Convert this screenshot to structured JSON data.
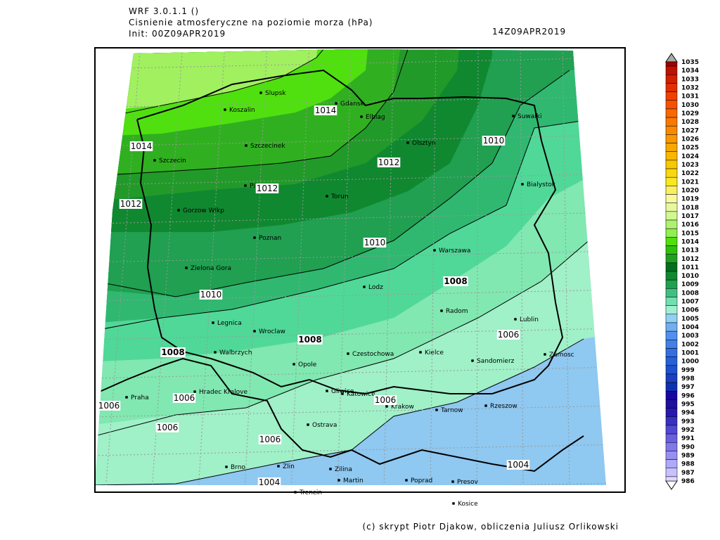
{
  "header": {
    "model": "WRF 3.0.1.1 ()",
    "title": "Cisnienie atmosferyczne na poziomie morza (hPa)",
    "init": "Init: 00Z09APR2019",
    "valid": "14Z09APR2019"
  },
  "footer": "(c) skrypt Piotr Djakow, obliczenia Juliusz Orlikowski",
  "cities": [
    "Slupsk",
    "Koszalin",
    "Gdansk",
    "Elblag",
    "Szczecinek",
    "Olsztyn",
    "Suwalki",
    "Szczecin",
    "Pila",
    "Torun",
    "Bialystok",
    "Gorzow Wlkp",
    "Poznan",
    "Warszawa",
    "Zielona Gora",
    "Lodz",
    "Radom",
    "Legnica",
    "Wroclaw",
    "Lublin",
    "Walbrzych",
    "Opole",
    "Czestochowa",
    "Kielce",
    "Zamosc",
    "Sandomierz",
    "Hradec Kralove",
    "Gliwice",
    "Katowice",
    "Praha",
    "Krakow",
    "Tarnow",
    "Rzeszow",
    "Ostrava",
    "Brno",
    "Zlin",
    "Zilina",
    "Martin",
    "Poprad",
    "Presov",
    "Trencin",
    "Kosice"
  ],
  "contour_labels": [
    1014,
    1014,
    1012,
    1012,
    1012,
    1010,
    1010,
    1010,
    1008,
    1008,
    1008,
    1006,
    1006,
    1006,
    1006,
    1006,
    1006,
    1004,
    1004
  ],
  "colorbar": {
    "levels": [
      1035,
      1034,
      1033,
      1032,
      1031,
      1030,
      1029,
      1028,
      1027,
      1026,
      1025,
      1024,
      1023,
      1022,
      1021,
      1020,
      1019,
      1018,
      1017,
      1016,
      1015,
      1014,
      1013,
      1012,
      1011,
      1010,
      1009,
      1008,
      1007,
      1006,
      1005,
      1004,
      1003,
      1002,
      1001,
      1000,
      999,
      998,
      997,
      996,
      995,
      994,
      993,
      992,
      991,
      990,
      989,
      988,
      987,
      986
    ],
    "colors": [
      "#a00000",
      "#c01000",
      "#d02000",
      "#e03000",
      "#f04000",
      "#f85000",
      "#f86800",
      "#f87800",
      "#f88800",
      "#f89800",
      "#f8a800",
      "#f8b800",
      "#f8c800",
      "#f8d810",
      "#f8e820",
      "#f8f060",
      "#f8f8a0",
      "#e8f8a0",
      "#d0f890",
      "#b0f070",
      "#90f050",
      "#50e010",
      "#30c010",
      "#20a020",
      "#007020",
      "#108830",
      "#20a050",
      "#40c080",
      "#70e0b0",
      "#a0f0d0",
      "#90d0f8",
      "#70b0f0",
      "#5090f0",
      "#4080e8",
      "#3070e0",
      "#2860d8",
      "#2050d0",
      "#1840c0",
      "#1030b0",
      "#1808a0",
      "#2010a0",
      "#2818b0",
      "#3830c0",
      "#5048d0",
      "#6860e0",
      "#8078e8",
      "#9890f0",
      "#b0a8f8",
      "#c8c0ff",
      "#e0d8ff"
    ]
  }
}
